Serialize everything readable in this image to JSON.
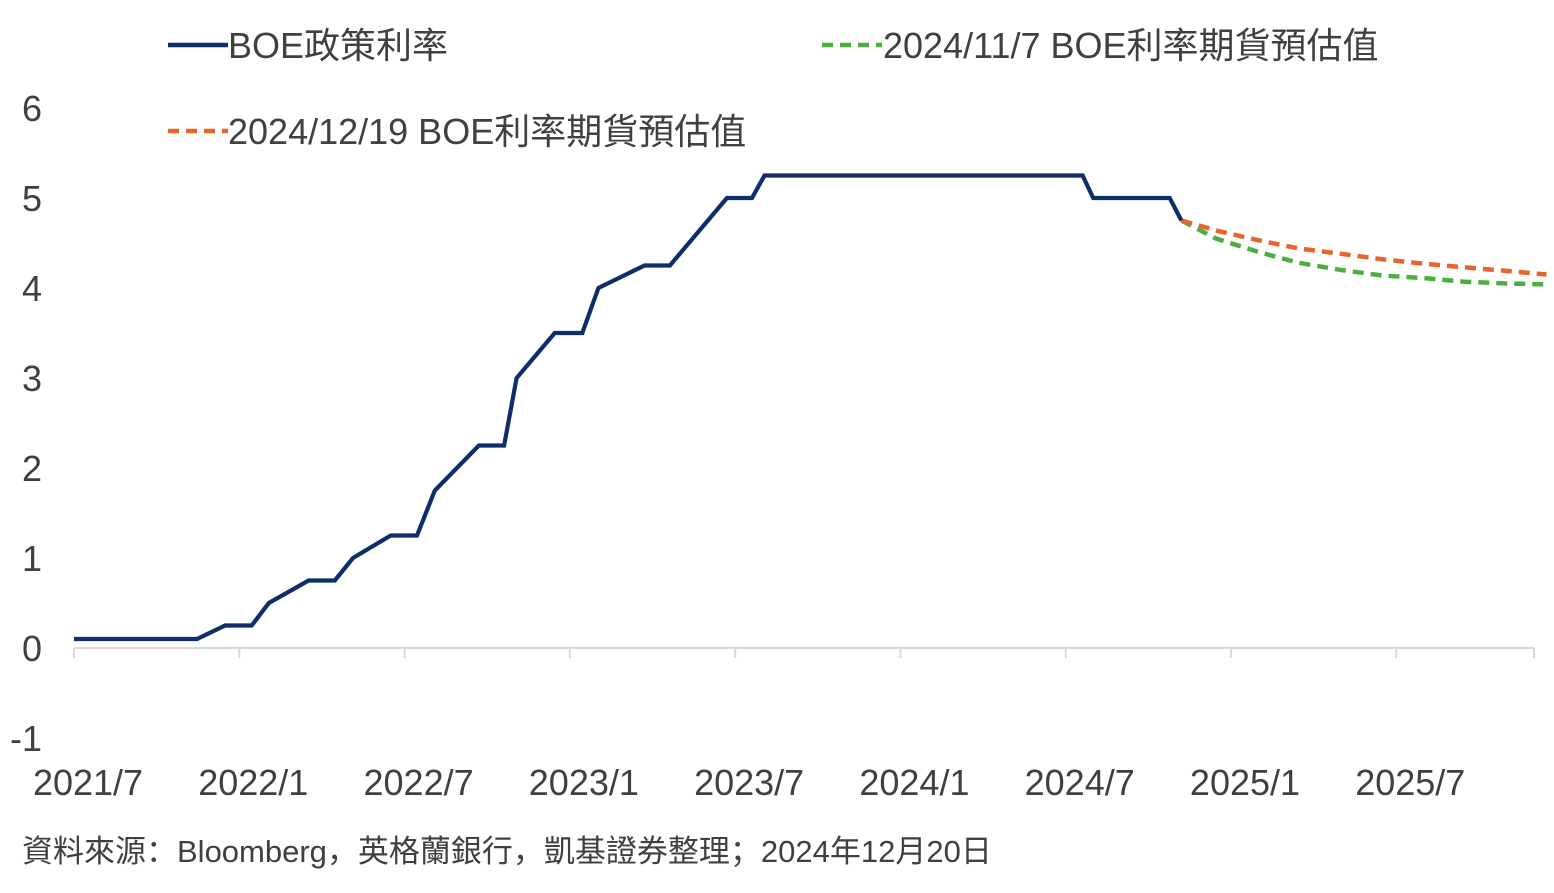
{
  "chart_data": {
    "type": "line",
    "title": "",
    "xlabel": "",
    "ylabel": "",
    "ylim": [
      -1,
      6
    ],
    "y_ticks": [
      -1,
      0,
      1,
      2,
      3,
      4,
      5,
      6
    ],
    "x_range": [
      "2021-07",
      "2025-12"
    ],
    "x_ticks": [
      "2021/7",
      "2022/1",
      "2022/7",
      "2023/1",
      "2023/7",
      "2024/1",
      "2024/7",
      "2025/1",
      "2025/7"
    ],
    "grid": false,
    "legend": "top",
    "series": [
      {
        "name": "BOE政策利率",
        "color": "#0e2d6b",
        "style": "solid",
        "points": [
          [
            "2021-07-01",
            0.1
          ],
          [
            "2021-11-15",
            0.1
          ],
          [
            "2021-12-16",
            0.25
          ],
          [
            "2022-01-15",
            0.25
          ],
          [
            "2022-02-03",
            0.5
          ],
          [
            "2022-03-17",
            0.75
          ],
          [
            "2022-04-15",
            0.75
          ],
          [
            "2022-05-05",
            1.0
          ],
          [
            "2022-06-16",
            1.25
          ],
          [
            "2022-07-15",
            1.25
          ],
          [
            "2022-08-04",
            1.75
          ],
          [
            "2022-09-22",
            2.25
          ],
          [
            "2022-10-20",
            2.25
          ],
          [
            "2022-11-03",
            3.0
          ],
          [
            "2022-12-15",
            3.5
          ],
          [
            "2023-01-15",
            3.5
          ],
          [
            "2023-02-02",
            4.0
          ],
          [
            "2023-03-23",
            4.25
          ],
          [
            "2023-04-20",
            4.25
          ],
          [
            "2023-05-11",
            4.5
          ],
          [
            "2023-06-22",
            5.0
          ],
          [
            "2023-07-20",
            5.0
          ],
          [
            "2023-08-03",
            5.25
          ],
          [
            "2024-07-20",
            5.25
          ],
          [
            "2024-08-01",
            5.0
          ],
          [
            "2024-10-25",
            5.0
          ],
          [
            "2024-11-07",
            4.75
          ]
        ]
      },
      {
        "name": "2024/11/7 BOE利率期貨預估值",
        "color": "#4cae3f",
        "style": "dashed",
        "points": [
          [
            "2024-11-07",
            4.75
          ],
          [
            "2024-12-15",
            4.55
          ],
          [
            "2025-02-01",
            4.4
          ],
          [
            "2025-03-15",
            4.28
          ],
          [
            "2025-05-01",
            4.2
          ],
          [
            "2025-06-15",
            4.14
          ],
          [
            "2025-08-01",
            4.11
          ],
          [
            "2025-09-15",
            4.07
          ],
          [
            "2025-11-01",
            4.05
          ],
          [
            "2025-12-15",
            4.04
          ]
        ]
      },
      {
        "name": "2024/12/19 BOE利率期貨預估值",
        "color": "#e8642c",
        "style": "dashed",
        "points": [
          [
            "2024-11-07",
            4.75
          ],
          [
            "2024-12-19",
            4.63
          ],
          [
            "2025-02-01",
            4.53
          ],
          [
            "2025-03-15",
            4.44
          ],
          [
            "2025-05-01",
            4.38
          ],
          [
            "2025-06-15",
            4.32
          ],
          [
            "2025-08-01",
            4.27
          ],
          [
            "2025-09-15",
            4.23
          ],
          [
            "2025-11-01",
            4.19
          ],
          [
            "2025-12-15",
            4.15
          ]
        ]
      }
    ],
    "axis_color": "#d9d9d9",
    "source": "資料來源：Bloomberg，英格蘭銀行，凱基證券整理；2024年12月20日"
  }
}
